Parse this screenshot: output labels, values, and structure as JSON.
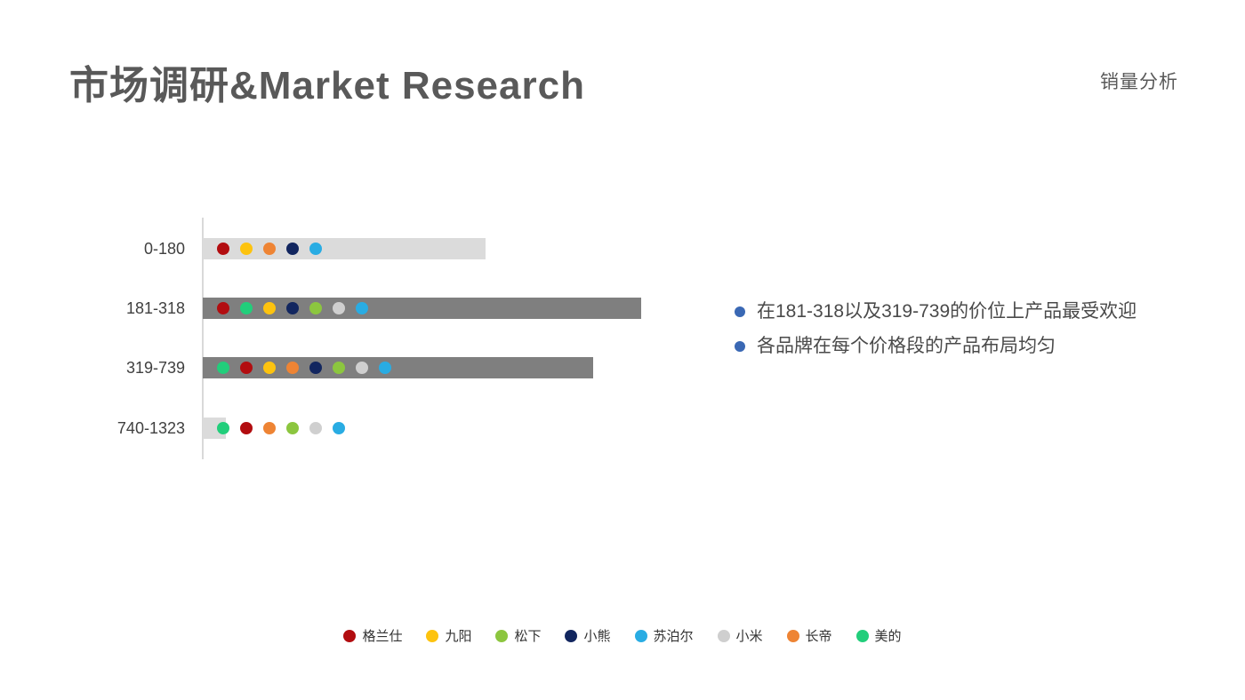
{
  "page": {
    "background": "#ffffff"
  },
  "header": {
    "title": "市场调研&Market Research",
    "subtitle": "销量分析"
  },
  "insights": {
    "bullet_color": "#3A68B4",
    "items": [
      "在181-318以及319-739的价位上产品最受欢迎",
      "各品牌在每个价格段的产品布局均匀"
    ]
  },
  "brands": [
    {
      "name": "格兰仕",
      "color": "#B20D10"
    },
    {
      "name": "九阳",
      "color": "#FDC30F"
    },
    {
      "name": "松下",
      "color": "#8CC63F"
    },
    {
      "name": "小熊",
      "color": "#12265F"
    },
    {
      "name": "苏泊尔",
      "color": "#29ACE3"
    },
    {
      "name": "小米",
      "color": "#CFCFCF"
    },
    {
      "name": "长帝",
      "color": "#EE8434"
    },
    {
      "name": "美的",
      "color": "#22CE7B"
    }
  ],
  "chart_data": {
    "type": "bar",
    "orientation": "horizontal",
    "title": "",
    "xlabel": "",
    "ylabel": "价格段",
    "categories": [
      "0-180",
      "181-318",
      "319-739",
      "740-1323"
    ],
    "values_relative": [
      318,
      493,
      439,
      26
    ],
    "value_note": "no numeric axis shown; values are relative bar lengths (px), max bar = 181-318",
    "bar_colors": [
      "#DBDBDB",
      "#7F7F7F",
      "#7F7F7F",
      "#DBDBDB"
    ],
    "brand_dots": [
      [
        "格兰仕",
        "九阳",
        "长帝",
        "小熊",
        "苏泊尔"
      ],
      [
        "格兰仕",
        "美的",
        "九阳",
        "小熊",
        "松下",
        "小米",
        "苏泊尔"
      ],
      [
        "美的",
        "格兰仕",
        "九阳",
        "长帝",
        "小熊",
        "松下",
        "小米",
        "苏泊尔"
      ],
      [
        "美的",
        "格兰仕",
        "长帝",
        "松下",
        "小米",
        "苏泊尔"
      ]
    ],
    "axis_color": "#D9D9D9",
    "grid": false,
    "legend_position": "bottom"
  }
}
